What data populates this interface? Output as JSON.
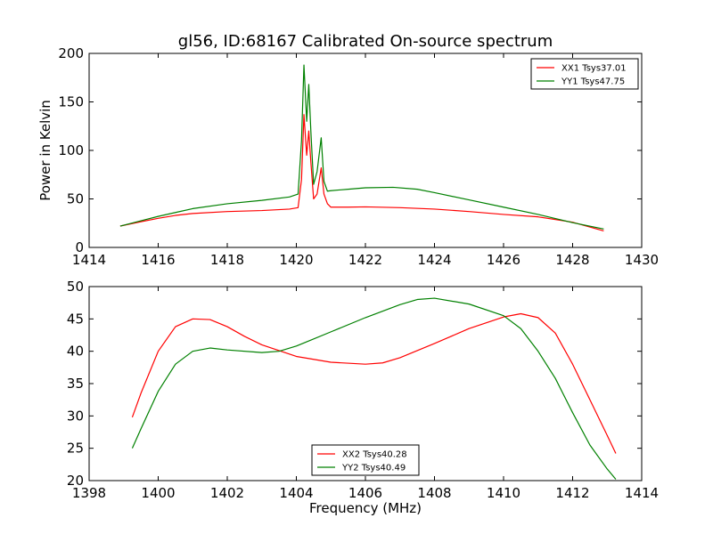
{
  "chart_data": [
    {
      "type": "line",
      "title": "gl56, ID:68167 Calibrated On-source spectrum",
      "xlabel": "",
      "ylabel": "Power in Kelvin",
      "xlim": [
        1414,
        1430
      ],
      "ylim": [
        0,
        200
      ],
      "xticks": [
        "1414",
        "1416",
        "1418",
        "1420",
        "1422",
        "1424",
        "1426",
        "1428",
        "1430"
      ],
      "yticks": [
        "0",
        "50",
        "100",
        "150",
        "200"
      ],
      "grid": false,
      "legend_position": "upper right",
      "series": [
        {
          "name": "XX1 Tsys37.01",
          "color": "#ff0000",
          "x": [
            1414.9,
            1415.5,
            1416,
            1416.5,
            1417,
            1418,
            1419,
            1419.8,
            1420.05,
            1420.15,
            1420.22,
            1420.3,
            1420.36,
            1420.42,
            1420.5,
            1420.6,
            1420.72,
            1420.8,
            1420.9,
            1421,
            1421.5,
            1422,
            1423,
            1424,
            1425,
            1426,
            1427,
            1428,
            1428.9
          ],
          "y": [
            22,
            26.5,
            30,
            33,
            35,
            37,
            38,
            39.5,
            41,
            70,
            137,
            95,
            120,
            88,
            50,
            55,
            82,
            55,
            45,
            41.5,
            41.5,
            41.8,
            41,
            39.5,
            37,
            34,
            31.5,
            26,
            17
          ]
        },
        {
          "name": "YY1 Tsys47.75",
          "color": "#008000",
          "x": [
            1414.9,
            1415.5,
            1416,
            1416.5,
            1417,
            1418,
            1419,
            1419.8,
            1420.05,
            1420.15,
            1420.22,
            1420.3,
            1420.36,
            1420.42,
            1420.5,
            1420.6,
            1420.72,
            1420.8,
            1420.9,
            1421,
            1421.5,
            1422,
            1422.8,
            1423.5,
            1424,
            1425,
            1426,
            1427,
            1428,
            1428.9
          ],
          "y": [
            22,
            27.5,
            32,
            36,
            40,
            45,
            48.5,
            52,
            55,
            110,
            188,
            130,
            168,
            120,
            65,
            78,
            113,
            68,
            58,
            58.5,
            60,
            61.5,
            62,
            60,
            56.5,
            49,
            41.5,
            34,
            25.5,
            19
          ]
        }
      ]
    },
    {
      "type": "line",
      "title": "",
      "xlabel": "Frequency (MHz)",
      "ylabel": "",
      "xlim": [
        1398,
        1414
      ],
      "ylim": [
        20,
        50
      ],
      "xticks": [
        "1398",
        "1400",
        "1402",
        "1404",
        "1406",
        "1408",
        "1410",
        "1412",
        "1414"
      ],
      "yticks": [
        "20",
        "25",
        "30",
        "35",
        "40",
        "45",
        "50"
      ],
      "grid": false,
      "legend_position": "lower center",
      "series": [
        {
          "name": "XX2 Tsys40.28",
          "color": "#ff0000",
          "x": [
            1399.25,
            1399.5,
            1400,
            1400.5,
            1401,
            1401.5,
            1402,
            1402.5,
            1403,
            1404,
            1405,
            1406,
            1406.5,
            1407,
            1408,
            1409,
            1410,
            1410.5,
            1411,
            1411.5,
            1412,
            1412.5,
            1413,
            1413.25
          ],
          "y": [
            29.8,
            33.5,
            40,
            43.8,
            45,
            44.9,
            43.8,
            42.3,
            41,
            39.2,
            38.3,
            38,
            38.2,
            39,
            41.2,
            43.5,
            45.3,
            45.8,
            45.2,
            42.8,
            38,
            32.5,
            27,
            24.2
          ]
        },
        {
          "name": "YY2 Tsys40.49",
          "color": "#008000",
          "x": [
            1399.25,
            1399.5,
            1400,
            1400.5,
            1401,
            1401.5,
            1402,
            1403,
            1403.5,
            1404,
            1405,
            1406,
            1407,
            1407.5,
            1408,
            1409,
            1410,
            1410.5,
            1411,
            1411.5,
            1412,
            1412.5,
            1413,
            1413.25
          ],
          "y": [
            25,
            28,
            33.8,
            38,
            40,
            40.5,
            40.2,
            39.8,
            40,
            40.8,
            43,
            45.2,
            47.2,
            48,
            48.2,
            47.3,
            45.5,
            43.5,
            40,
            35.8,
            30.5,
            25.5,
            21.8,
            20.2
          ]
        }
      ]
    }
  ]
}
